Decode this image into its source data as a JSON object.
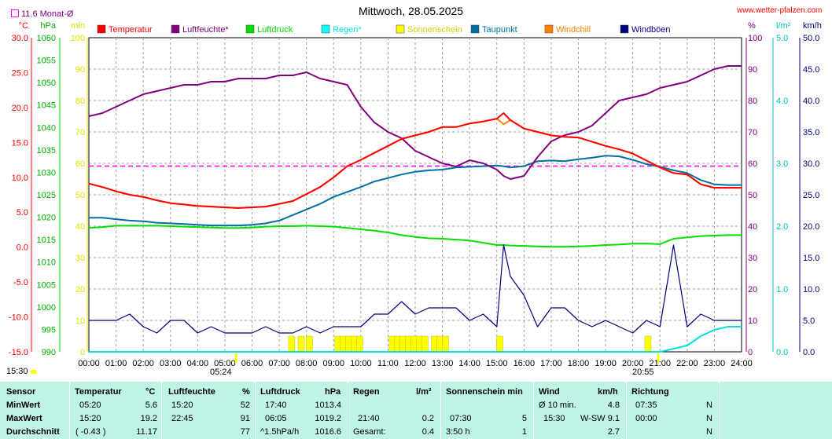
{
  "title": "Mittwoch, 28.05.2025",
  "source": "www.wetter-pfalzen.com",
  "month_avg_label": "11.6 Monat-Ø",
  "time_marks": {
    "left": "15:30",
    "sunrise": "05:24",
    "sunset": "20:55"
  },
  "colors": {
    "temperature": "#ff0000",
    "humidity": "#800080",
    "pressure": "#00e000",
    "rain": "#00e0e0",
    "sunshine": "#ffff00",
    "dewpoint": "#0070a0",
    "windchill": "#ff8000",
    "gust": "#000080",
    "avg_line": "#ff00ff"
  },
  "legend": [
    {
      "label": "Temperatur",
      "color": "#ff0000"
    },
    {
      "label": "Luftfeuchte*",
      "color": "#800080"
    },
    {
      "label": "Luftdruck",
      "color": "#00e000"
    },
    {
      "label": "Regen*",
      "color": "#00ffff"
    },
    {
      "label": "Sonnenschein",
      "color": "#ffff00"
    },
    {
      "label": "Taupunkt",
      "color": "#0070a0"
    },
    {
      "label": "Windchill",
      "color": "#ff8000"
    },
    {
      "label": "Windböen",
      "color": "#000080"
    }
  ],
  "chart_data": {
    "type": "line",
    "title": "Mittwoch, 28.05.2025",
    "x_hours": [
      0,
      0.5,
      1,
      1.5,
      2,
      2.5,
      3,
      3.5,
      4,
      4.5,
      5,
      5.5,
      6,
      6.5,
      7,
      7.5,
      8,
      8.5,
      9,
      9.5,
      10,
      10.5,
      11,
      11.5,
      12,
      12.5,
      13,
      13.5,
      14,
      14.5,
      15,
      15.25,
      15.5,
      16,
      16.5,
      17,
      17.5,
      18,
      18.5,
      19,
      19.5,
      20,
      20.5,
      21,
      21.5,
      22,
      22.5,
      23,
      23.5,
      24
    ],
    "x_ticks": [
      "00:00",
      "01:00",
      "02:00",
      "03:00",
      "04:00",
      "05:00",
      "06:00",
      "07:00",
      "08:00",
      "09:00",
      "10:00",
      "11:00",
      "12:00",
      "13:00",
      "14:00",
      "15:00",
      "16:00",
      "17:00",
      "18:00",
      "19:00",
      "20:00",
      "21:00",
      "22:00",
      "23:00",
      "24:00"
    ],
    "axes": {
      "temperature": {
        "unit": "°C",
        "range": [
          -15,
          30
        ],
        "ticks": [
          "30.0",
          "25.0",
          "20.0",
          "15.0",
          "10.0",
          "5.0",
          "0.0",
          "-5.0",
          "-10.0",
          "-15.0"
        ]
      },
      "pressure": {
        "unit": "hPa",
        "range": [
          990,
          1060
        ],
        "ticks": [
          "1060",
          "1055",
          "1050",
          "1045",
          "1040",
          "1035",
          "1030",
          "1025",
          "1020",
          "1015",
          "1010",
          "1005",
          "1000",
          "995",
          "990"
        ]
      },
      "sunshine": {
        "unit": "min",
        "range": [
          0,
          100
        ],
        "ticks": [
          "100",
          "90",
          "80",
          "70",
          "60",
          "50",
          "40",
          "30",
          "20",
          "10",
          "0"
        ]
      },
      "humidity": {
        "unit": "%",
        "range": [
          0,
          100
        ],
        "ticks": [
          "100",
          "90",
          "80",
          "70",
          "60",
          "50",
          "40",
          "30",
          "20",
          "10",
          "0"
        ]
      },
      "rain": {
        "unit": "l/m²",
        "range": [
          0,
          5
        ],
        "ticks": [
          "5.0",
          "4.0",
          "3.0",
          "2.0",
          "1.0",
          "0.0"
        ]
      },
      "wind": {
        "unit": "km/h",
        "range": [
          0,
          50
        ],
        "ticks": [
          "50.0",
          "45.0",
          "40.0",
          "35.0",
          "30.0",
          "25.0",
          "20.0",
          "15.0",
          "10.0",
          "5.0",
          "0.0"
        ]
      }
    },
    "series": [
      {
        "name": "Temperatur",
        "axis": "temperature",
        "color": "#ff0000",
        "values": [
          9.1,
          8.6,
          8.0,
          7.5,
          7.2,
          6.7,
          6.3,
          6.1,
          5.9,
          5.8,
          5.7,
          5.6,
          5.7,
          5.8,
          6.2,
          6.6,
          7.6,
          8.6,
          10.0,
          11.6,
          12.5,
          13.5,
          14.5,
          15.5,
          16.0,
          16.5,
          17.2,
          17.2,
          17.7,
          18.0,
          18.4,
          19.2,
          18.2,
          17.0,
          16.5,
          16.0,
          15.8,
          15.7,
          15.1,
          14.5,
          14.0,
          13.4,
          12.4,
          11.4,
          10.6,
          10.4,
          9.0,
          8.5,
          8.5,
          8.5
        ]
      },
      {
        "name": "Luftfeuchte*",
        "axis": "humidity",
        "color": "#800080",
        "values": [
          75,
          76,
          78,
          80,
          82,
          83,
          84,
          85,
          85,
          86,
          86,
          87,
          87,
          87,
          88,
          88,
          89,
          87,
          86,
          85,
          78,
          73,
          70,
          68,
          64,
          62,
          60,
          59,
          61,
          60,
          58,
          56,
          55,
          56,
          62,
          67,
          69,
          70,
          72,
          76,
          80,
          81,
          82,
          84,
          85,
          86,
          88,
          90,
          91,
          91
        ]
      },
      {
        "name": "Luftdruck",
        "axis": "pressure",
        "color": "#00e000",
        "values": [
          1017.6,
          1017.8,
          1018.1,
          1018.1,
          1018.1,
          1018.1,
          1018.0,
          1017.9,
          1017.8,
          1017.7,
          1017.6,
          1017.6,
          1017.7,
          1017.9,
          1018.0,
          1018.0,
          1018.1,
          1018.0,
          1017.9,
          1017.6,
          1017.3,
          1017.0,
          1016.6,
          1016.0,
          1015.6,
          1015.3,
          1015.2,
          1015.0,
          1014.8,
          1014.3,
          1013.8,
          1013.8,
          1013.7,
          1013.6,
          1013.5,
          1013.4,
          1013.4,
          1013.5,
          1013.6,
          1013.8,
          1013.9,
          1014.1,
          1014.1,
          1014.0,
          1015.2,
          1015.5,
          1015.8,
          1015.9,
          1016.0,
          1016.0
        ]
      },
      {
        "name": "Taupunkt",
        "axis": "temperature",
        "color": "#0070a0",
        "values": [
          4.2,
          4.2,
          4.0,
          3.8,
          3.7,
          3.5,
          3.4,
          3.3,
          3.2,
          3.1,
          3.1,
          3.1,
          3.2,
          3.4,
          3.8,
          4.6,
          5.4,
          6.2,
          7.2,
          7.9,
          8.6,
          9.4,
          9.9,
          10.4,
          10.8,
          11.0,
          11.1,
          11.4,
          11.5,
          11.6,
          11.7,
          11.6,
          11.4,
          11.6,
          12.3,
          12.4,
          12.3,
          12.6,
          12.8,
          13.1,
          13.0,
          12.5,
          11.9,
          11.5,
          11.0,
          10.6,
          9.6,
          9.0,
          8.9,
          8.9
        ]
      },
      {
        "name": "Windchill",
        "axis": "temperature",
        "color": "#ff8000",
        "values": [
          9.1,
          8.6,
          8.0,
          7.5,
          7.2,
          6.7,
          6.3,
          6.1,
          5.9,
          5.8,
          5.7,
          5.6,
          5.7,
          5.8,
          6.2,
          6.6,
          7.6,
          8.6,
          10.0,
          11.6,
          12.5,
          13.5,
          14.5,
          15.5,
          16.0,
          16.5,
          17.2,
          17.2,
          17.7,
          18.0,
          18.4,
          17.6,
          18.2,
          17.0,
          16.5,
          16.0,
          15.8,
          15.7,
          15.1,
          14.5,
          14.0,
          13.4,
          12.4,
          11.4,
          10.6,
          10.4,
          9.0,
          8.5,
          8.5,
          8.5
        ]
      },
      {
        "name": "Windböen",
        "axis": "wind",
        "color": "#000080",
        "values": [
          5,
          5,
          5,
          6,
          4,
          3,
          5,
          5,
          3,
          4,
          3,
          3,
          3,
          4,
          3,
          3,
          4,
          3,
          4,
          4,
          4,
          6,
          6,
          8,
          6,
          7,
          7,
          7,
          5,
          6,
          4,
          17,
          12,
          9,
          4,
          7,
          7,
          5,
          4,
          5,
          4,
          3,
          5,
          4,
          17,
          4,
          6,
          5,
          5,
          5
        ]
      },
      {
        "name": "Regen*",
        "axis": "rain",
        "color": "#00e0e0",
        "values": [
          0,
          0,
          0,
          0,
          0,
          0,
          0,
          0,
          0,
          0,
          0,
          0,
          0,
          0,
          0,
          0,
          0,
          0,
          0,
          0,
          0,
          0,
          0,
          0,
          0,
          0,
          0,
          0,
          0,
          0,
          0,
          0,
          0,
          0,
          0,
          0,
          0,
          0,
          0,
          0,
          0,
          0,
          0,
          0,
          0.05,
          0.1,
          0.25,
          0.35,
          0.4,
          0.4
        ]
      }
    ],
    "sunshine_minutes": [
      {
        "hour": 7.4,
        "min": 5
      },
      {
        "hour": 7.75,
        "min": 5
      },
      {
        "hour": 8.05,
        "min": 5
      },
      {
        "hour": 9.1,
        "min": 5
      },
      {
        "hour": 9.3,
        "min": 5
      },
      {
        "hour": 9.5,
        "min": 5
      },
      {
        "hour": 9.7,
        "min": 5
      },
      {
        "hour": 9.9,
        "min": 5
      },
      {
        "hour": 11.1,
        "min": 5
      },
      {
        "hour": 11.3,
        "min": 5
      },
      {
        "hour": 11.5,
        "min": 5
      },
      {
        "hour": 11.7,
        "min": 5
      },
      {
        "hour": 11.9,
        "min": 5
      },
      {
        "hour": 12.1,
        "min": 5
      },
      {
        "hour": 12.3,
        "min": 5
      },
      {
        "hour": 12.65,
        "min": 5
      },
      {
        "hour": 12.85,
        "min": 5
      },
      {
        "hour": 13.05,
        "min": 5
      },
      {
        "hour": 15.05,
        "min": 5
      },
      {
        "hour": 20.5,
        "min": 5
      }
    ],
    "month_avg_temperature": 11.6,
    "grid": true,
    "legend_position": "top"
  },
  "table": {
    "headers": {
      "sensor": "Sensor",
      "temp": "Temperatur",
      "temp_unit": "°C",
      "hum": "Luftfeuchte",
      "hum_unit": "%",
      "press": "Luftdruck",
      "press_unit": "hPa",
      "rain": "Regen",
      "rain_unit": "l/m²",
      "sun": "Sonnenschein min",
      "wind": "Wind",
      "wind_unit": "km/h",
      "dir": "Richtung"
    },
    "rows": [
      {
        "label": "MinWert",
        "temp_time": "05:20",
        "temp_val": "5.6",
        "hum_time": "15:20",
        "hum_val": "52",
        "press_time": "17:40",
        "press_val": "1013.4",
        "rain_time": "",
        "rain_val": "",
        "sun_time": "",
        "sun_val": "",
        "wind_label": "Ø 10 min.",
        "wind_extra": "",
        "wind_val": "4.8",
        "dir_time": "07:35",
        "dir_val": "N"
      },
      {
        "label": "MaxWert",
        "temp_time": "15:20",
        "temp_val": "19.2",
        "hum_time": "22:45",
        "hum_val": "91",
        "press_time": "06:05",
        "press_val": "1019.2",
        "rain_time": "21:40",
        "rain_val": "0.2",
        "sun_time": "07:30",
        "sun_val": "5",
        "wind_label": "15:30",
        "wind_extra": "W-SW",
        "wind_val": "9.1",
        "dir_time": "00:00",
        "dir_val": "N"
      },
      {
        "label": "Durchschnitt",
        "temp_time": "( -0.43 )",
        "temp_val": "11.17",
        "hum_time": "",
        "hum_val": "77",
        "press_time": "^1.5hPa/h",
        "press_val": "1016.6",
        "rain_time": "Gesamt:",
        "rain_val": "0.4",
        "sun_time": "3:50 h",
        "sun_val": "1",
        "wind_label": "",
        "wind_extra": "",
        "wind_val": "2.7",
        "dir_time": "",
        "dir_val": "N"
      }
    ]
  }
}
